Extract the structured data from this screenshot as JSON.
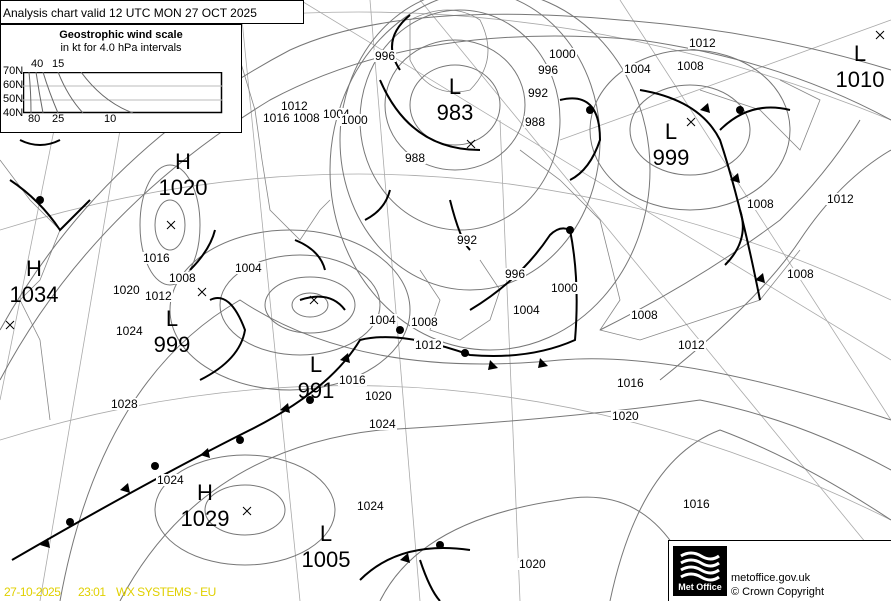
{
  "header": {
    "title": "Analysis chart valid 12 UTC MON 27  OCT 2025"
  },
  "wind_scale": {
    "title": "Geostrophic wind scale",
    "subtitle": "in kt for 4.0 hPa intervals",
    "latitudes": [
      "70N",
      "60N",
      "50N",
      "40N"
    ],
    "top_labels": [
      "40",
      "15"
    ],
    "bottom_labels": [
      "80",
      "25",
      "10"
    ]
  },
  "pressure_centers": [
    {
      "type": "L",
      "value": "983"
    },
    {
      "type": "L",
      "value": "999"
    },
    {
      "type": "L",
      "value": "1010"
    },
    {
      "type": "H",
      "value": "1020"
    },
    {
      "type": "H",
      "value": "1034"
    },
    {
      "type": "L",
      "value": "999"
    },
    {
      "type": "L",
      "value": "991"
    },
    {
      "type": "H",
      "value": "1029"
    },
    {
      "type": "L",
      "value": "1005"
    }
  ],
  "isobar_labels": [
    "1012",
    "1008",
    "1004",
    "1000",
    "996",
    "992",
    "988",
    "988",
    "996",
    "1016",
    "1012",
    "1008",
    "1004",
    "1000",
    "1016",
    "1008",
    "1012",
    "1020",
    "1024",
    "1028",
    "1004",
    "992",
    "996",
    "1000",
    "1004",
    "1008",
    "1012",
    "1004",
    "1016",
    "1020",
    "1024",
    "1024",
    "1024",
    "1020",
    "1016",
    "1020",
    "1016",
    "1012",
    "1008",
    "1012",
    "1008",
    "1008"
  ],
  "footer": {
    "logo_text": "Met Office",
    "website": "metoffice.gov.uk",
    "copyright": "© Crown Copyright"
  },
  "stamp": {
    "date": "27-10-2025",
    "time": "23:01",
    "product": "WX SYSTEMS - EU"
  },
  "colors": {
    "isobar": "#777777",
    "front": "#000000",
    "stamp": "#e0d000",
    "grid": "#999999"
  }
}
